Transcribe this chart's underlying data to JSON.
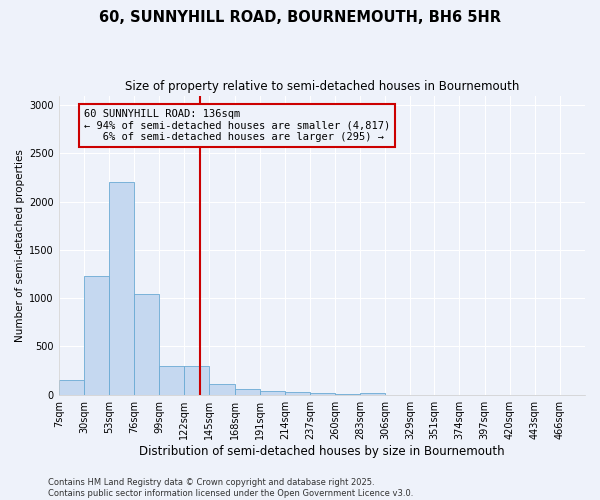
{
  "title": "60, SUNNYHILL ROAD, BOURNEMOUTH, BH6 5HR",
  "subtitle": "Size of property relative to semi-detached houses in Bournemouth",
  "xlabel": "Distribution of semi-detached houses by size in Bournemouth",
  "ylabel": "Number of semi-detached properties",
  "bin_labels": [
    "7sqm",
    "30sqm",
    "53sqm",
    "76sqm",
    "99sqm",
    "122sqm",
    "145sqm",
    "168sqm",
    "191sqm",
    "214sqm",
    "237sqm",
    "260sqm",
    "283sqm",
    "306sqm",
    "329sqm",
    "351sqm",
    "374sqm",
    "397sqm",
    "420sqm",
    "443sqm",
    "466sqm"
  ],
  "bin_edges": [
    7,
    30,
    53,
    76,
    99,
    122,
    145,
    168,
    191,
    214,
    237,
    260,
    283,
    306,
    329,
    351,
    374,
    397,
    420,
    443,
    466
  ],
  "bar_heights": [
    150,
    1230,
    2200,
    1040,
    300,
    300,
    110,
    55,
    40,
    25,
    15,
    5,
    20,
    0,
    0,
    0,
    0,
    0,
    0,
    0
  ],
  "bar_color": "#c5d8f0",
  "bar_edge_color": "#6aaad4",
  "property_size": 136,
  "vline_color": "#cc0000",
  "annotation_line1": "60 SUNNYHILL ROAD: 136sqm",
  "annotation_line2": "← 94% of semi-detached houses are smaller (4,817)",
  "annotation_line3": "   6% of semi-detached houses are larger (295) →",
  "annotation_box_color": "#cc0000",
  "ylim": [
    0,
    3100
  ],
  "yticks": [
    0,
    500,
    1000,
    1500,
    2000,
    2500,
    3000
  ],
  "background_color": "#eef2fa",
  "footer_line1": "Contains HM Land Registry data © Crown copyright and database right 2025.",
  "footer_line2": "Contains public sector information licensed under the Open Government Licence v3.0.",
  "title_fontsize": 10.5,
  "subtitle_fontsize": 8.5,
  "ylabel_fontsize": 7.5,
  "xlabel_fontsize": 8.5,
  "tick_fontsize": 7,
  "annotation_fontsize": 7.5,
  "footer_fontsize": 6
}
